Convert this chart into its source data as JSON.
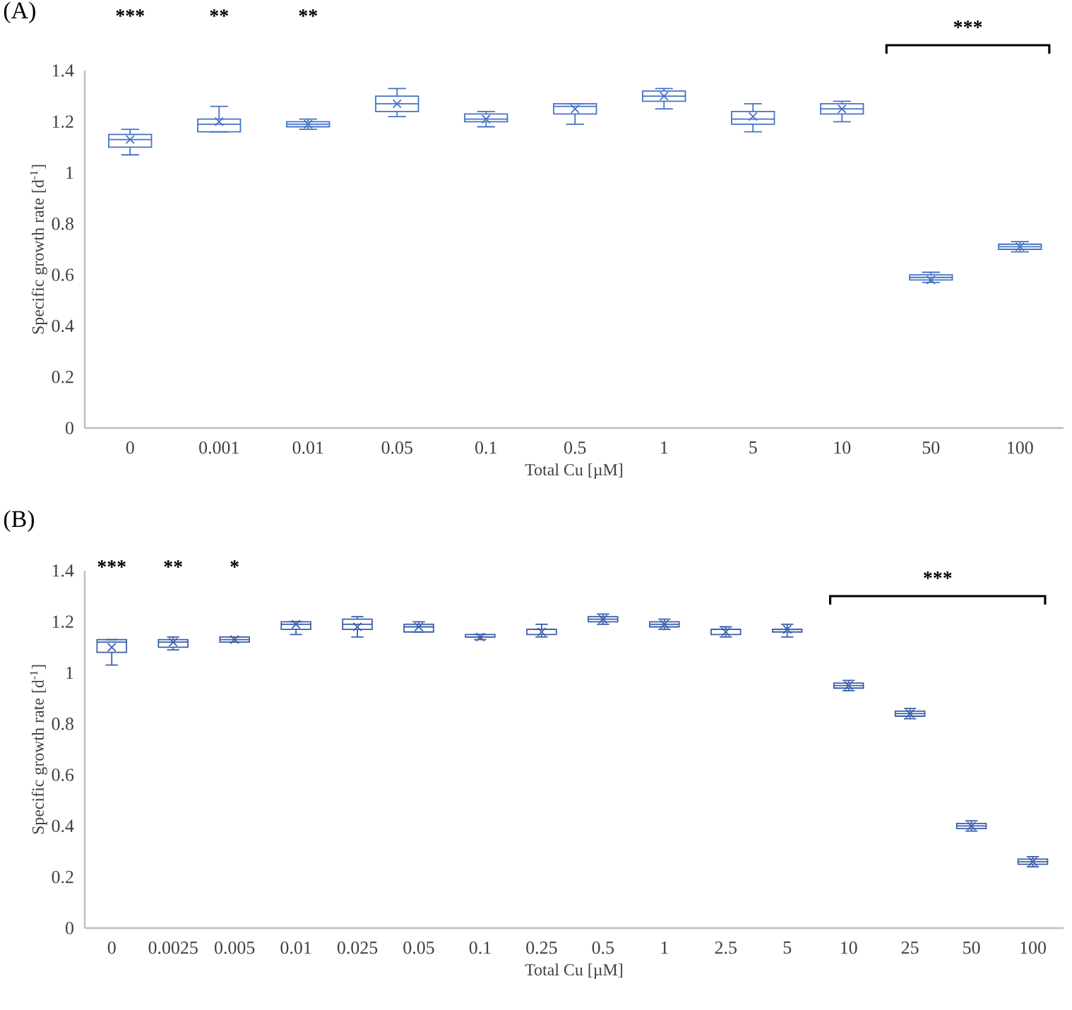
{
  "chart_data": [
    {
      "type": "box",
      "title": "(A)",
      "xlabel": "Total Cu [µM]",
      "ylabel": "Specific growth rate [d$^{-1}$]",
      "color": "#4472c4",
      "ylim": [
        0,
        1.4
      ],
      "yticks": [
        0,
        0.2,
        0.4,
        0.6,
        0.8,
        1,
        1.2,
        1.4
      ],
      "grid": false,
      "marker": "cross",
      "categories": [
        "0",
        "0.001",
        "0.01",
        "0.05",
        "0.1",
        "0.5",
        "1",
        "5",
        "10",
        "50",
        "100"
      ],
      "boxes": [
        {
          "low": 1.07,
          "q1": 1.1,
          "median": 1.13,
          "q3": 1.15,
          "high": 1.17,
          "mean": 1.13
        },
        {
          "low": 1.16,
          "q1": 1.16,
          "median": 1.19,
          "q3": 1.21,
          "high": 1.26,
          "mean": 1.2
        },
        {
          "low": 1.17,
          "q1": 1.18,
          "median": 1.19,
          "q3": 1.2,
          "high": 1.21,
          "mean": 1.19
        },
        {
          "low": 1.22,
          "q1": 1.24,
          "median": 1.27,
          "q3": 1.3,
          "high": 1.33,
          "mean": 1.27
        },
        {
          "low": 1.18,
          "q1": 1.2,
          "median": 1.21,
          "q3": 1.23,
          "high": 1.24,
          "mean": 1.21
        },
        {
          "low": 1.19,
          "q1": 1.23,
          "median": 1.26,
          "q3": 1.27,
          "high": 1.27,
          "mean": 1.25
        },
        {
          "low": 1.25,
          "q1": 1.28,
          "median": 1.3,
          "q3": 1.32,
          "high": 1.33,
          "mean": 1.3
        },
        {
          "low": 1.16,
          "q1": 1.19,
          "median": 1.21,
          "q3": 1.24,
          "high": 1.27,
          "mean": 1.22
        },
        {
          "low": 1.2,
          "q1": 1.23,
          "median": 1.25,
          "q3": 1.27,
          "high": 1.28,
          "mean": 1.25
        },
        {
          "low": 0.57,
          "q1": 0.58,
          "median": 0.59,
          "q3": 0.6,
          "high": 0.61,
          "mean": 0.58
        },
        {
          "low": 0.69,
          "q1": 0.7,
          "median": 0.71,
          "q3": 0.72,
          "high": 0.73,
          "mean": 0.71
        }
      ],
      "annotations": [
        "***",
        "**",
        "**",
        "***"
      ]
    },
    {
      "type": "box",
      "title": "(B)",
      "xlabel": "Total Cu [µM]",
      "ylabel": "Specific growth rate [d$^{-1}$]",
      "color": "#3b5eaa",
      "ylim": [
        0,
        1.4
      ],
      "yticks": [
        0,
        0.2,
        0.4,
        0.6,
        0.8,
        1,
        1.2,
        1.4
      ],
      "grid": false,
      "marker": "cross",
      "categories": [
        "0",
        "0.0025",
        "0.005",
        "0.01",
        "0.025",
        "0.05",
        "0.1",
        "0.25",
        "0.5",
        "1",
        "2.5",
        "5",
        "10",
        "25",
        "50",
        "100"
      ],
      "boxes": [
        {
          "low": 1.03,
          "q1": 1.08,
          "median": 1.12,
          "q3": 1.13,
          "high": 1.13,
          "mean": 1.1
        },
        {
          "low": 1.09,
          "q1": 1.1,
          "median": 1.12,
          "q3": 1.13,
          "high": 1.14,
          "mean": 1.12
        },
        {
          "low": 1.12,
          "q1": 1.12,
          "median": 1.13,
          "q3": 1.14,
          "high": 1.14,
          "mean": 1.13
        },
        {
          "low": 1.15,
          "q1": 1.17,
          "median": 1.19,
          "q3": 1.2,
          "high": 1.2,
          "mean": 1.19
        },
        {
          "low": 1.14,
          "q1": 1.17,
          "median": 1.19,
          "q3": 1.21,
          "high": 1.22,
          "mean": 1.18
        },
        {
          "low": 1.16,
          "q1": 1.16,
          "median": 1.18,
          "q3": 1.19,
          "high": 1.2,
          "mean": 1.18
        },
        {
          "low": 1.13,
          "q1": 1.14,
          "median": 1.14,
          "q3": 1.15,
          "high": 1.15,
          "mean": 1.14
        },
        {
          "low": 1.14,
          "q1": 1.15,
          "median": 1.17,
          "q3": 1.17,
          "high": 1.19,
          "mean": 1.16
        },
        {
          "low": 1.19,
          "q1": 1.2,
          "median": 1.21,
          "q3": 1.22,
          "high": 1.23,
          "mean": 1.21
        },
        {
          "low": 1.17,
          "q1": 1.18,
          "median": 1.19,
          "q3": 1.2,
          "high": 1.21,
          "mean": 1.19
        },
        {
          "low": 1.14,
          "q1": 1.15,
          "median": 1.17,
          "q3": 1.17,
          "high": 1.18,
          "mean": 1.16
        },
        {
          "low": 1.14,
          "q1": 1.16,
          "median": 1.17,
          "q3": 1.17,
          "high": 1.19,
          "mean": 1.17
        },
        {
          "low": 0.93,
          "q1": 0.94,
          "median": 0.95,
          "q3": 0.96,
          "high": 0.97,
          "mean": 0.95
        },
        {
          "low": 0.82,
          "q1": 0.83,
          "median": 0.84,
          "q3": 0.85,
          "high": 0.86,
          "mean": 0.84
        },
        {
          "low": 0.38,
          "q1": 0.39,
          "median": 0.4,
          "q3": 0.41,
          "high": 0.42,
          "mean": 0.4
        },
        {
          "low": 0.24,
          "q1": 0.25,
          "median": 0.26,
          "q3": 0.27,
          "high": 0.28,
          "mean": 0.26
        }
      ],
      "annotations": [
        "***",
        "**",
        "*",
        "***"
      ]
    }
  ]
}
